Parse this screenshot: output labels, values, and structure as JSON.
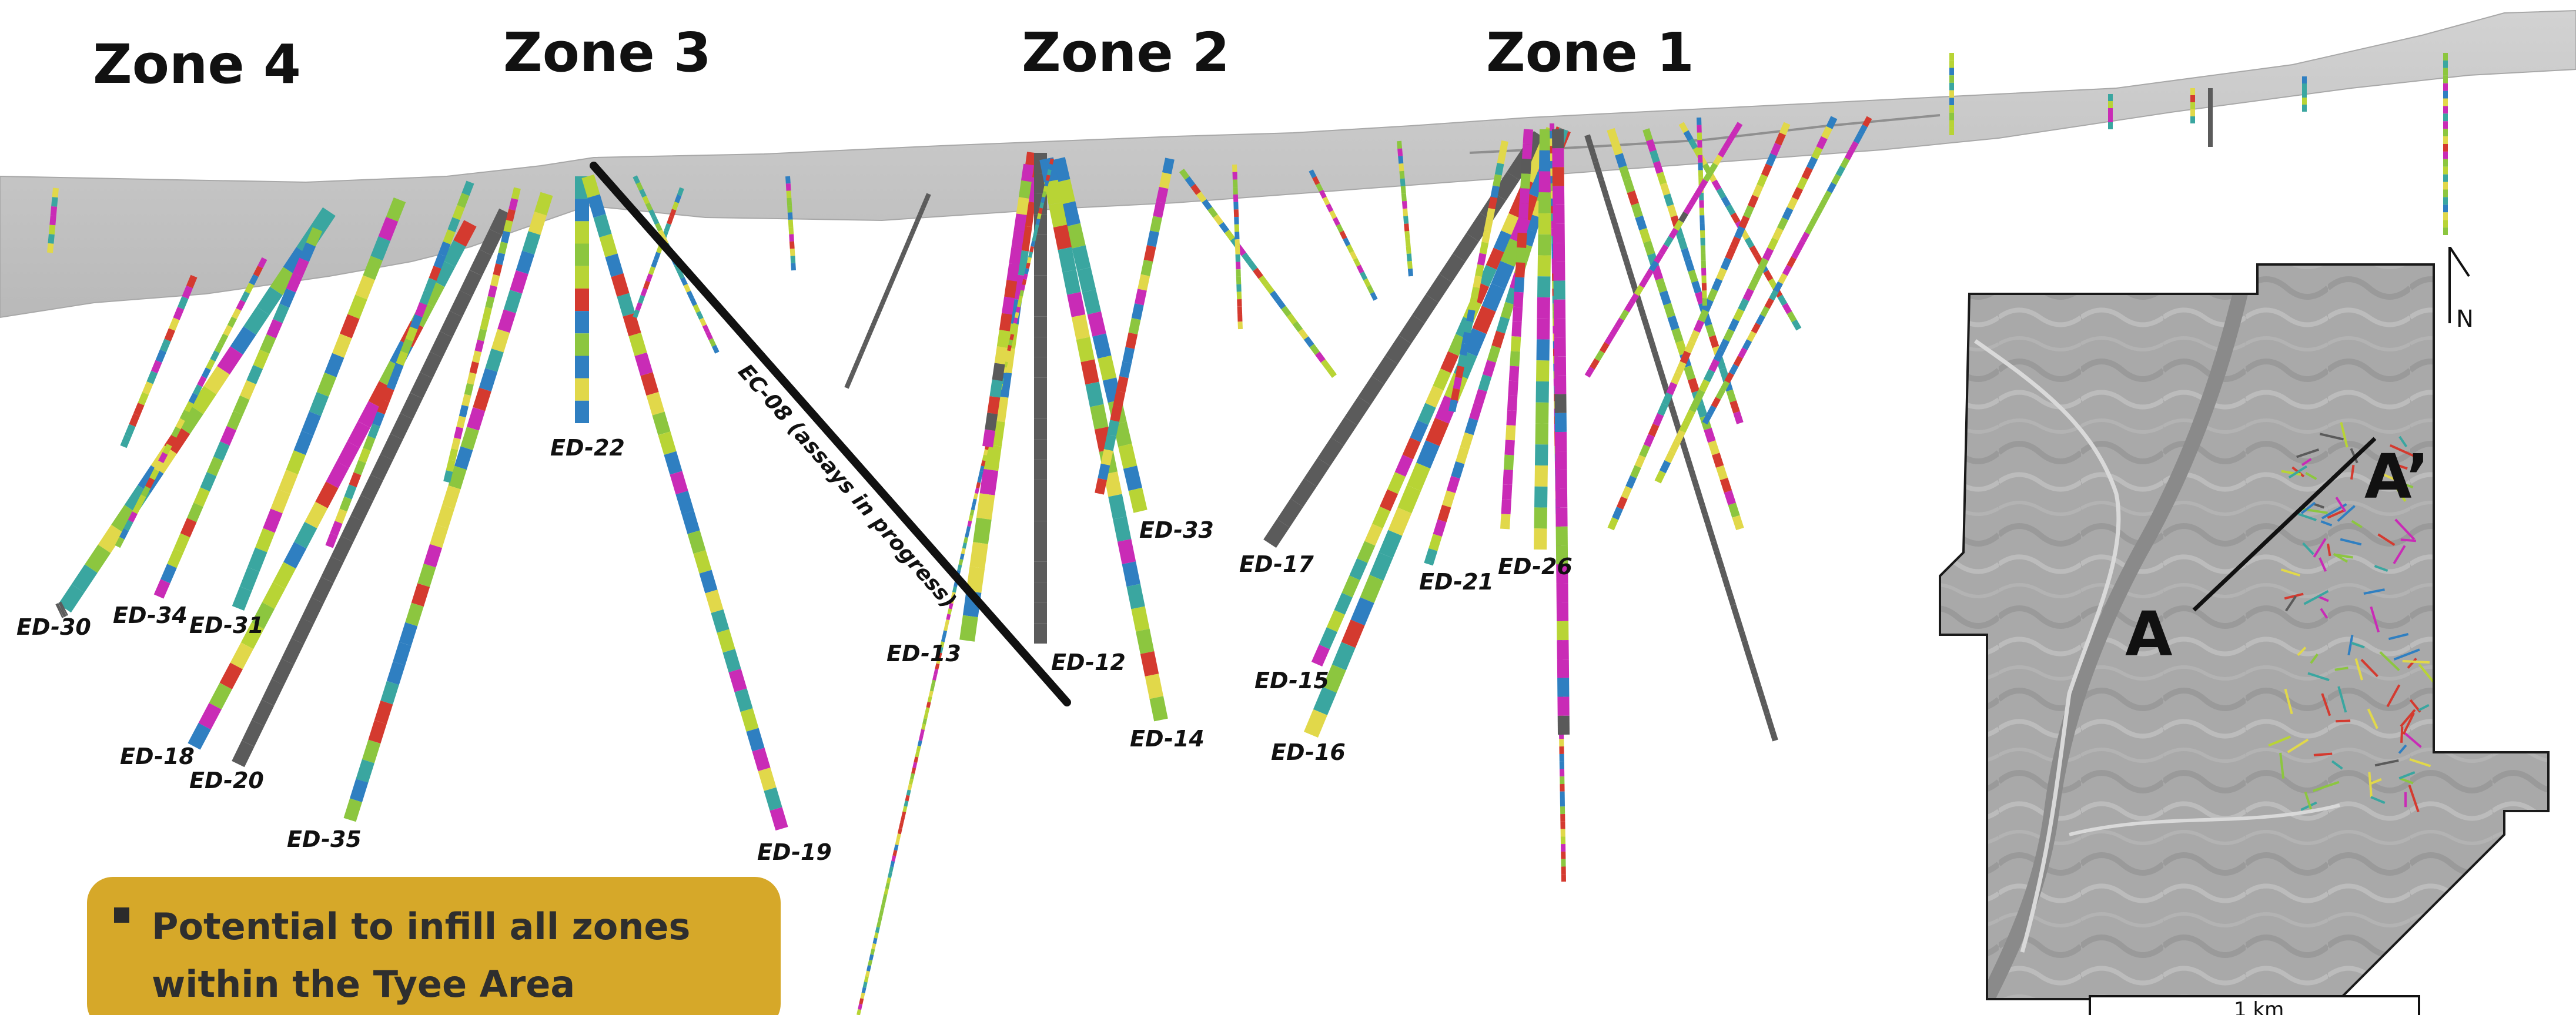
{
  "zones": [
    {
      "id": "zone-4",
      "label": "Zone 4"
    },
    {
      "id": "zone-3",
      "label": "Zone 3"
    },
    {
      "id": "zone-2",
      "label": "Zone 2"
    },
    {
      "id": "zone-1",
      "label": "Zone 1"
    }
  ],
  "holes": [
    {
      "id": "ED-30"
    },
    {
      "id": "ED-34"
    },
    {
      "id": "ED-31"
    },
    {
      "id": "ED-18"
    },
    {
      "id": "ED-20"
    },
    {
      "id": "ED-35"
    },
    {
      "id": "ED-22"
    },
    {
      "id": "ED-19"
    },
    {
      "id": "ED-13"
    },
    {
      "id": "ED-12"
    },
    {
      "id": "ED-33"
    },
    {
      "id": "ED-14"
    },
    {
      "id": "ED-17"
    },
    {
      "id": "ED-15"
    },
    {
      "id": "ED-16"
    },
    {
      "id": "ED-21"
    },
    {
      "id": "ED-26"
    }
  ],
  "highlighted_hole": {
    "label": "EC-08 (assays in progress)"
  },
  "callout": {
    "bullet_text": "Potential to infill all zones within the Tyee Area",
    "background": "#d6a829"
  },
  "inset_map": {
    "section_start_label": "A",
    "section_end_label": "A’",
    "north_label": "N",
    "scale_label": "1 km"
  },
  "colors": {
    "terrain": "#c4c4c4",
    "grade_palette": [
      "#2f7fc1",
      "#8cc63f",
      "#b8d435",
      "#3aa6a0",
      "#e1d84a",
      "#d43a2f",
      "#c92bb6",
      "#5a5a5a"
    ],
    "no_assay": "#5b5b5b"
  }
}
